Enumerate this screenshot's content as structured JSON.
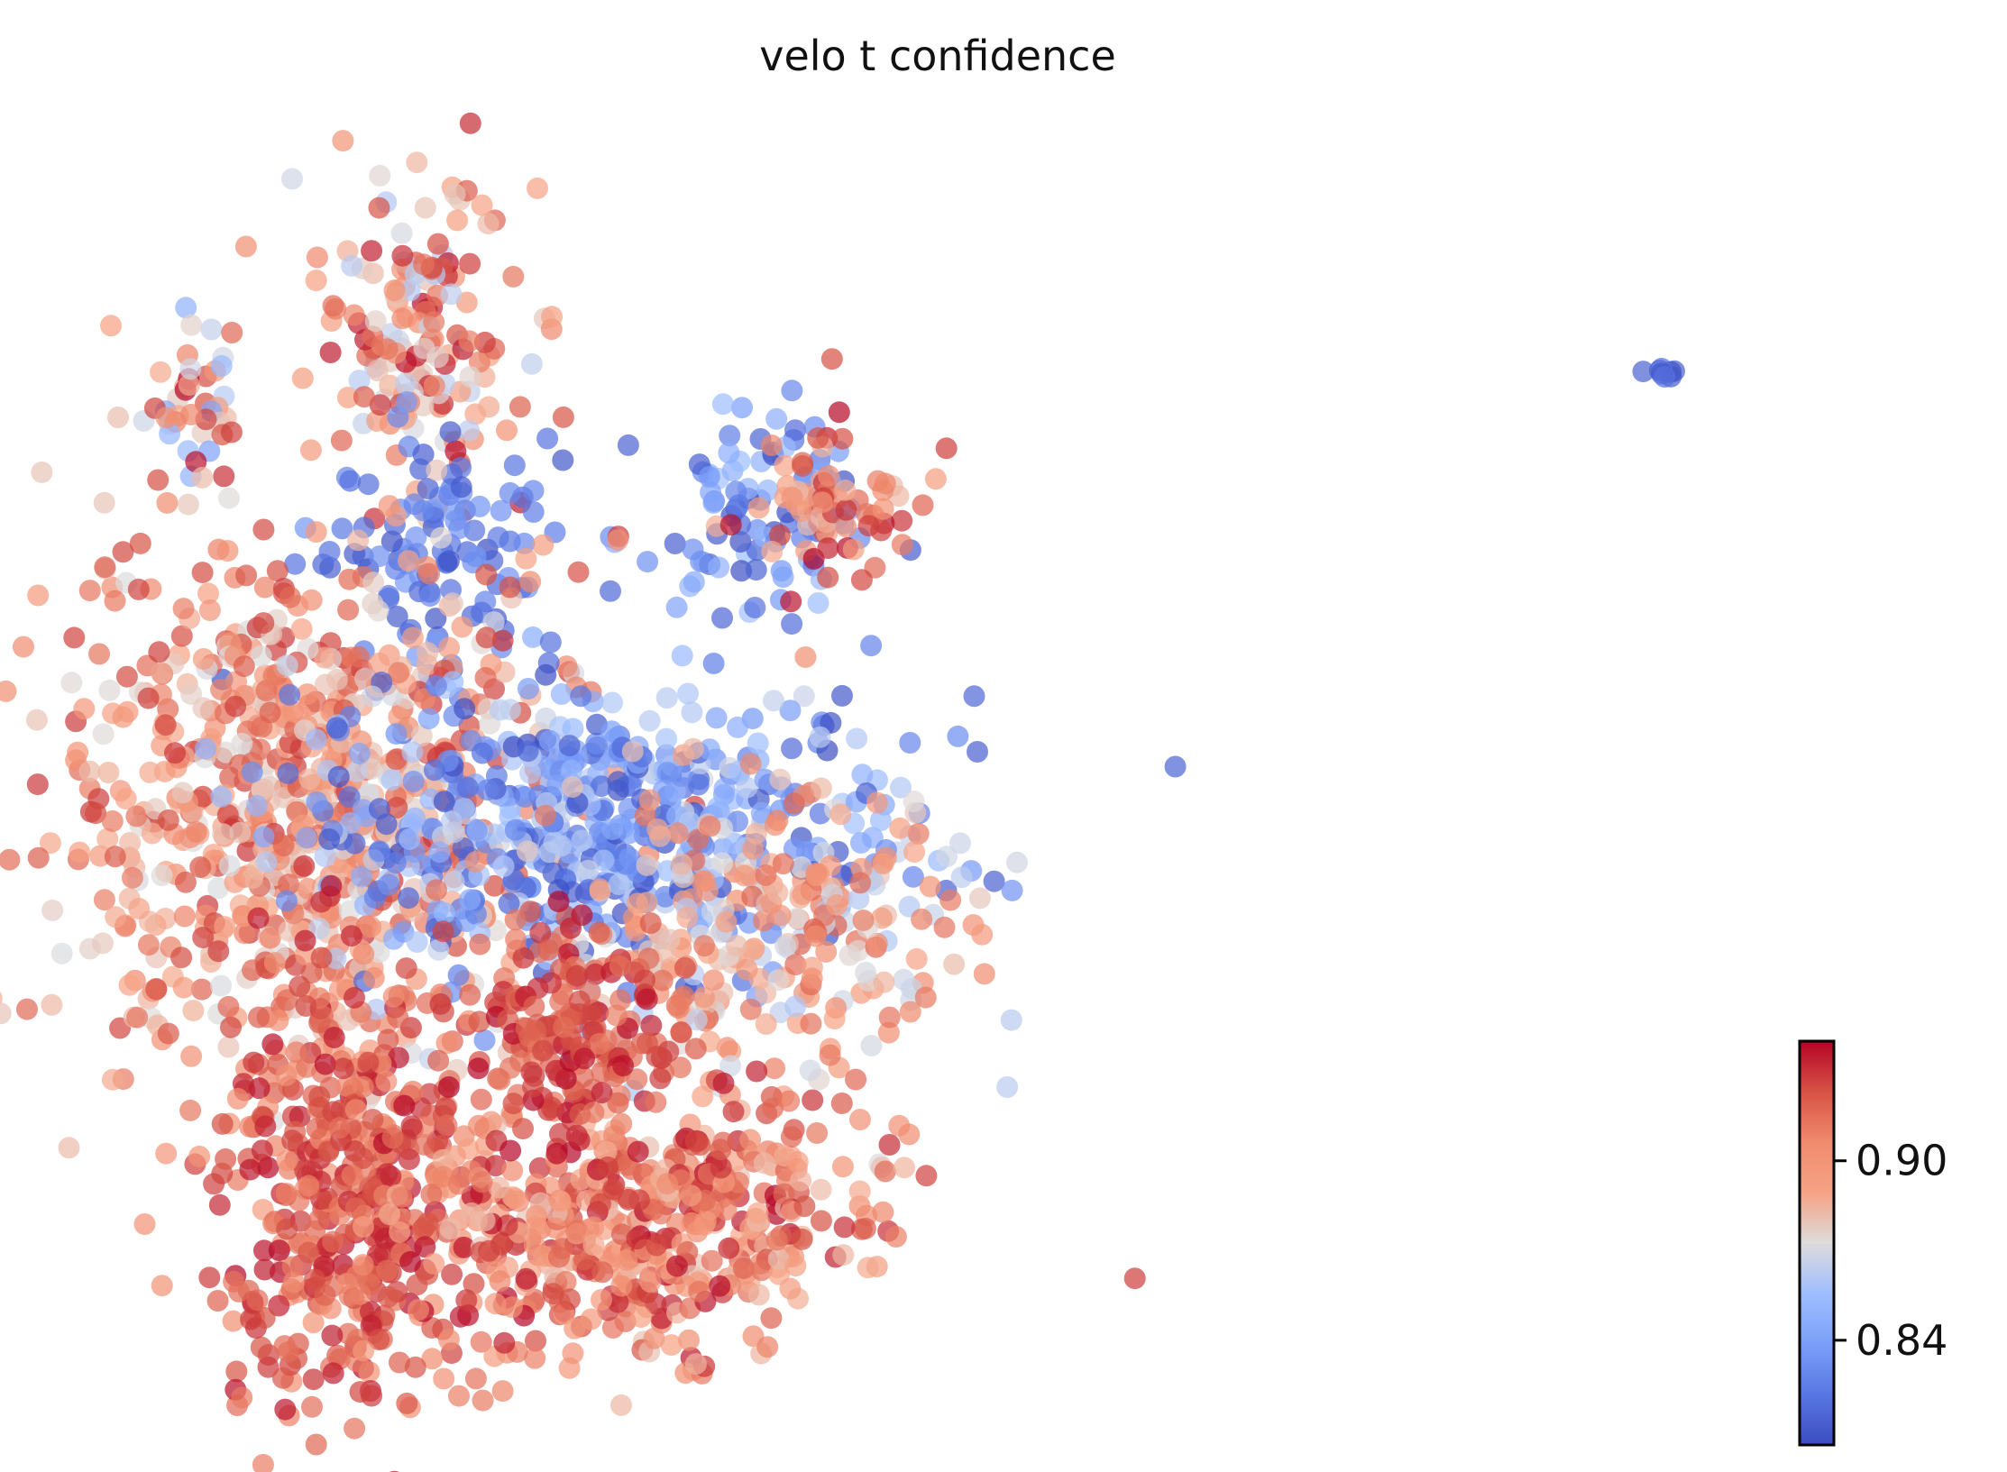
{
  "chart_data": {
    "type": "scatter",
    "title": "velo t confidence",
    "xlabel": "",
    "ylabel": "",
    "axes_visible": false,
    "grid": false,
    "colormap": "coolwarm",
    "colorbar": {
      "min": 0.805,
      "max": 0.94,
      "ticks": [
        0.84,
        0.9
      ],
      "tick_labels": [
        "0.84",
        "0.90"
      ],
      "placement": "bottom-right"
    },
    "point_color_range": {
      "low": "#3b4cc0",
      "mid": "#dddddd",
      "high": "#b40426"
    },
    "clusters": [
      {
        "name": "",
        "cx": 0.055,
        "cy": 0.8,
        "sx": 0.015,
        "sy": 0.035,
        "n": 40,
        "vmin": 0.84,
        "vmax": 0.94
      },
      {
        "name": "",
        "cx": 0.19,
        "cy": 0.85,
        "sx": 0.03,
        "sy": 0.06,
        "n": 160,
        "vmin": 0.86,
        "vmax": 0.94
      },
      {
        "name": "",
        "cx": 0.19,
        "cy": 0.67,
        "sx": 0.035,
        "sy": 0.06,
        "n": 110,
        "vmin": 0.805,
        "vmax": 0.84
      },
      {
        "name": "",
        "cx": 0.39,
        "cy": 0.71,
        "sx": 0.04,
        "sy": 0.04,
        "n": 90,
        "vmin": 0.805,
        "vmax": 0.86
      },
      {
        "name": "",
        "cx": 0.43,
        "cy": 0.72,
        "sx": 0.03,
        "sy": 0.035,
        "n": 70,
        "vmin": 0.88,
        "vmax": 0.94
      },
      {
        "name": "",
        "cx": 0.12,
        "cy": 0.47,
        "sx": 0.075,
        "sy": 0.11,
        "n": 800,
        "vmin": 0.87,
        "vmax": 0.93
      },
      {
        "name": "",
        "cx": 0.3,
        "cy": 0.46,
        "sx": 0.09,
        "sy": 0.06,
        "n": 550,
        "vmin": 0.805,
        "vmax": 0.87
      },
      {
        "name": "",
        "cx": 0.4,
        "cy": 0.38,
        "sx": 0.06,
        "sy": 0.06,
        "n": 260,
        "vmin": 0.86,
        "vmax": 0.92
      },
      {
        "name": "",
        "cx": 0.15,
        "cy": 0.17,
        "sx": 0.04,
        "sy": 0.09,
        "n": 420,
        "vmin": 0.9,
        "vmax": 0.94
      },
      {
        "name": "",
        "cx": 0.32,
        "cy": 0.15,
        "sx": 0.07,
        "sy": 0.05,
        "n": 520,
        "vmin": 0.88,
        "vmax": 0.94
      },
      {
        "name": "",
        "cx": 0.285,
        "cy": 0.3,
        "sx": 0.03,
        "sy": 0.05,
        "n": 160,
        "vmin": 0.91,
        "vmax": 0.94
      },
      {
        "name": "",
        "cx": 0.935,
        "cy": 0.82,
        "sx": 0.006,
        "sy": 0.002,
        "n": 8,
        "vmin": 0.805,
        "vmax": 0.82
      }
    ]
  }
}
